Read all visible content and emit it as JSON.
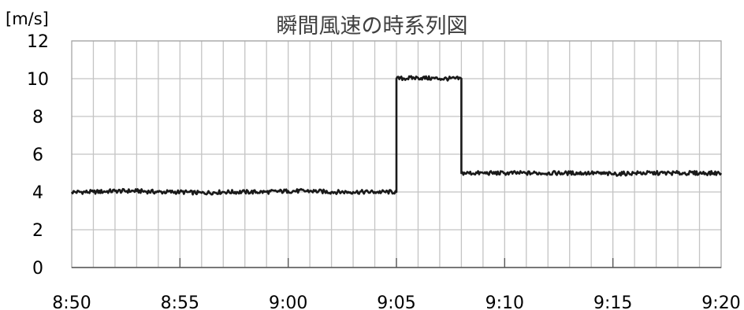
{
  "chart_data": {
    "type": "line",
    "title": "瞬間風速の時系列図",
    "ylabel": "[m/s]",
    "xlabel": "",
    "ylim": [
      0,
      12
    ],
    "xlim": [
      "8:50",
      "9:20"
    ],
    "y_ticks": [
      "0",
      "2",
      "4",
      "6",
      "8",
      "10",
      "12"
    ],
    "x_ticks": [
      "8:50",
      "8:55",
      "9:00",
      "9:05",
      "9:10",
      "9:15",
      "9:20"
    ],
    "grid": true,
    "legend": "none",
    "colors": {
      "line": "#1a1a1a",
      "grid": "#c4c4c4",
      "frame": "#a6a6a6",
      "tick": "#595959"
    },
    "series": [
      {
        "x": [
          "8:50",
          "8:51",
          "8:52",
          "8:53",
          "8:54",
          "8:55",
          "8:56",
          "8:57",
          "8:58",
          "8:59",
          "9:00",
          "9:01",
          "9:02",
          "9:03",
          "9:04",
          "9:05",
          "9:05",
          "9:06",
          "9:07",
          "9:08",
          "9:08",
          "9:09",
          "9:10",
          "9:11",
          "9:12",
          "9:13",
          "9:14",
          "9:15",
          "9:16",
          "9:17",
          "9:18",
          "9:19",
          "9:20"
        ],
        "y": [
          4.0,
          4.0,
          4.05,
          4.05,
          4.0,
          4.0,
          3.95,
          4.0,
          4.0,
          4.0,
          4.05,
          4.05,
          4.0,
          4.0,
          4.0,
          4.0,
          10.0,
          10.05,
          10.0,
          10.0,
          5.0,
          5.0,
          5.0,
          5.0,
          5.0,
          5.0,
          5.0,
          4.95,
          5.0,
          5.0,
          5.0,
          5.0,
          5.0
        ]
      }
    ]
  }
}
